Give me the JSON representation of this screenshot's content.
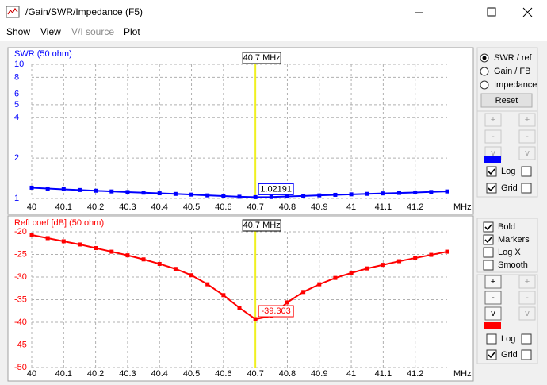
{
  "window": {
    "title": "/Gain/SWR/Impedance (F5)"
  },
  "menu": [
    "Show",
    "View",
    "V/I source",
    "Plot"
  ],
  "chart_data": [
    {
      "type": "line",
      "title": "SWR (50 ohm)",
      "x": [
        40,
        40.05,
        40.1,
        40.15,
        40.2,
        40.25,
        40.3,
        40.35,
        40.4,
        40.45,
        40.5,
        40.55,
        40.6,
        40.65,
        40.7,
        40.75,
        40.8,
        40.85,
        40.9,
        40.95,
        41,
        41.05,
        41.1,
        41.15,
        41.2,
        41.25,
        41.3
      ],
      "values": [
        1.203,
        1.186,
        1.17,
        1.156,
        1.142,
        1.128,
        1.116,
        1.104,
        1.092,
        1.081,
        1.068,
        1.054,
        1.041,
        1.029,
        1.02191,
        1.024,
        1.034,
        1.044,
        1.054,
        1.064,
        1.073,
        1.082,
        1.09,
        1.099,
        1.108,
        1.118,
        1.128
      ],
      "color": "#0000ff",
      "xlim": [
        40,
        41.3
      ],
      "xticks": [
        40,
        40.1,
        40.2,
        40.3,
        40.4,
        40.5,
        40.6,
        40.7,
        40.8,
        40.9,
        41,
        41.1,
        41.2
      ],
      "xunit": "MHz",
      "ylim": [
        1,
        10
      ],
      "yticks": [
        1,
        2,
        4,
        5,
        6,
        8,
        10
      ],
      "ylog": true,
      "grid": true,
      "cursor": {
        "value": 40.7,
        "label": "40.7 MHz",
        "readout": 1.02191
      }
    },
    {
      "type": "line",
      "title": "Refl coef [dB] (50 ohm)",
      "x": [
        40,
        40.05,
        40.1,
        40.15,
        40.2,
        40.25,
        40.3,
        40.35,
        40.4,
        40.45,
        40.5,
        40.55,
        40.6,
        40.65,
        40.7,
        40.75,
        40.8,
        40.85,
        40.9,
        40.95,
        41,
        41.05,
        41.1,
        41.15,
        41.2,
        41.25,
        41.3
      ],
      "values": [
        -20.7,
        -21.4,
        -22.1,
        -22.8,
        -23.6,
        -24.4,
        -25.2,
        -26.1,
        -27.1,
        -28.2,
        -29.6,
        -31.6,
        -34.0,
        -36.8,
        -39.303,
        -38.6,
        -35.6,
        -33.3,
        -31.6,
        -30.2,
        -29.1,
        -28.1,
        -27.3,
        -26.5,
        -25.8,
        -25.1,
        -24.4
      ],
      "color": "#ff0000",
      "xlim": [
        40,
        41.3
      ],
      "xticks": [
        40,
        40.1,
        40.2,
        40.3,
        40.4,
        40.5,
        40.6,
        40.7,
        40.8,
        40.9,
        41,
        41.1,
        41.2
      ],
      "xunit": "MHz",
      "ylim": [
        -50,
        -20
      ],
      "yticks": [
        -20,
        -25,
        -30,
        -35,
        -40,
        -45,
        -50
      ],
      "grid": true,
      "cursor": {
        "value": 40.7,
        "label": "40.7 MHz",
        "readout": -39.303
      }
    }
  ],
  "side_panel": {
    "top": {
      "radios": [
        "SWR / ref",
        "Gain / FB",
        "Impedance"
      ],
      "selected": 0,
      "reset": "Reset",
      "steppers": [
        "+",
        "-",
        "v"
      ],
      "swatch": "#0000ff",
      "checks": [
        {
          "label": "Log",
          "checked": true
        },
        {
          "label": "Grid",
          "checked": true
        }
      ]
    },
    "bottom": {
      "options": [
        {
          "label": "Bold",
          "checked": true
        },
        {
          "label": "Markers",
          "checked": true
        },
        {
          "label": "Log X",
          "checked": false
        },
        {
          "label": "Smooth",
          "checked": false
        }
      ],
      "steppers": [
        "+",
        "-",
        "v"
      ],
      "swatch": "#ff0000",
      "checks": [
        {
          "label": "Log",
          "checked": false
        },
        {
          "label": "Grid",
          "checked": true
        }
      ]
    }
  }
}
